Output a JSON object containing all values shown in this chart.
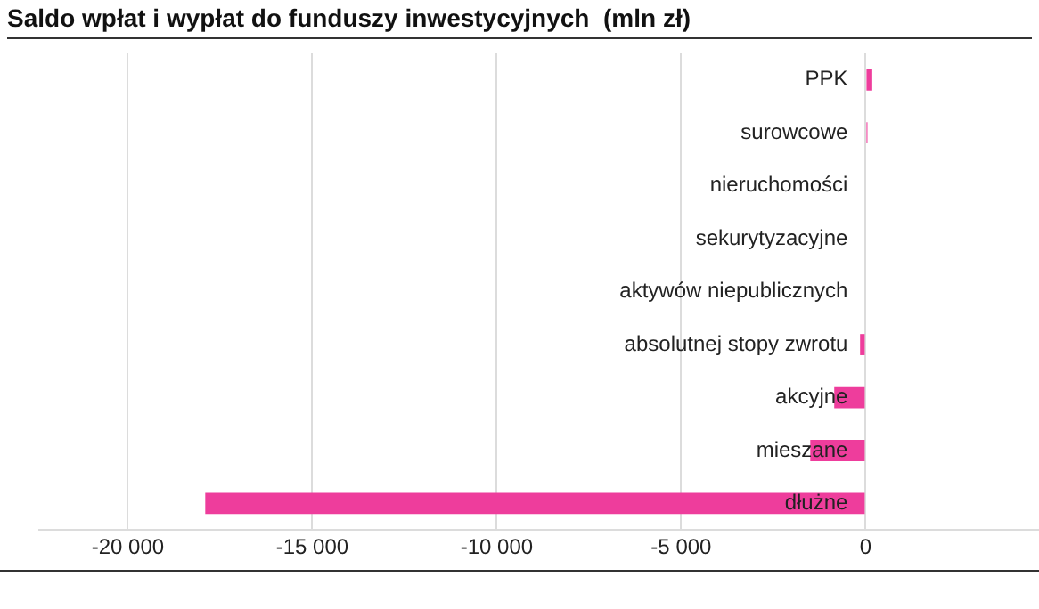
{
  "chart_data": {
    "type": "bar",
    "orientation": "horizontal",
    "title": "Saldo wpłat i wypłat do funduszy inwestycyjnych  (mln zł)",
    "categories": [
      "PPK",
      "surowcowe",
      "nieruchomości",
      "sekurytyzacyjne",
      "aktywów niepublicznych",
      "absolutnej stopy zwrotu",
      "akcyjne",
      "mieszane",
      "dłużne"
    ],
    "values": [
      180,
      50,
      0,
      0,
      0,
      -150,
      -850,
      -1500,
      -17900
    ],
    "color": "#ee3d9c",
    "xlim": [
      -22400,
      4700
    ],
    "xticks": [
      {
        "value": -20000,
        "label": "-20 000"
      },
      {
        "value": -15000,
        "label": "-15 000"
      },
      {
        "value": -10000,
        "label": "-10 000"
      },
      {
        "value": -5000,
        "label": "-5 000"
      },
      0
    ],
    "grid": "x"
  }
}
